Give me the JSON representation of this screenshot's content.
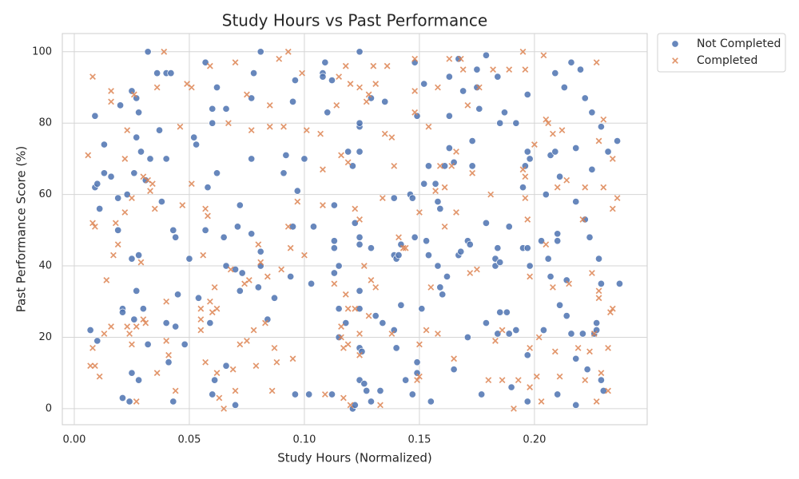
{
  "chart_data": {
    "type": "scatter",
    "title": "Study Hours vs Past Performance",
    "x_label": "Study Hours (Normalized)",
    "y_label": "Past Performance Score (%)",
    "xlim": [
      -0.0052,
      0.249
    ],
    "ylim": [
      -4.5,
      105.1
    ],
    "xticks": [
      {
        "value": 0,
        "label": "0.00"
      },
      {
        "value": 0.05,
        "label": "0.05"
      },
      {
        "value": 0.1,
        "label": "0.10"
      },
      {
        "value": 0.15,
        "label": "0.15"
      },
      {
        "value": 0.2,
        "label": "0.20"
      }
    ],
    "yticks": [
      0,
      20,
      40,
      60,
      80,
      100
    ],
    "grid": true,
    "legend": "outside-right",
    "series": [
      {
        "name": "Not Completed",
        "color": "#4c72b0",
        "marker": "o",
        "x": [
          0.007,
          0.009,
          0.009,
          0.01,
          0.01,
          0.011,
          0.013,
          0.013,
          0.016,
          0.019,
          0.02,
          0.019,
          0.021,
          0.021,
          0.021,
          0.023,
          0.024,
          0.025,
          0.025,
          0.025,
          0.026,
          0.026,
          0.027,
          0.027,
          0.027,
          0.028,
          0.028,
          0.028,
          0.029,
          0.03,
          0.032,
          0.031,
          0.032,
          0.033,
          0.036,
          0.037,
          0.038,
          0.04,
          0.04,
          0.04,
          0.042,
          0.041,
          0.043,
          0.043,
          0.044,
          0.045,
          0.044,
          0.048,
          0.05,
          0.052,
          0.053,
          0.054,
          0.057,
          0.057,
          0.058,
          0.059,
          0.06,
          0.06,
          0.06,
          0.061,
          0.062,
          0.062,
          0.065,
          0.066,
          0.066,
          0.066,
          0.07,
          0.07,
          0.071,
          0.072,
          0.073,
          0.072,
          0.077,
          0.077,
          0.077,
          0.078,
          0.08,
          0.081,
          0.081,
          0.081,
          0.084,
          0.087,
          0.091,
          0.092,
          0.094,
          0.095,
          0.096,
          0.096,
          0.095,
          0.097,
          0.1,
          0.103,
          0.104,
          0.102,
          0.108,
          0.108,
          0.109,
          0.11,
          0.112,
          0.112,
          0.113,
          0.113,
          0.113,
          0.113,
          0.115,
          0.115,
          0.115,
          0.118,
          0.119,
          0.121,
          0.121,
          0.122,
          0.122,
          0.124,
          0.124,
          0.124,
          0.124,
          0.124,
          0.124,
          0.124,
          0.124,
          0.124,
          0.124,
          0.125,
          0.126,
          0.127,
          0.129,
          0.129,
          0.129,
          0.131,
          0.133,
          0.135,
          0.134,
          0.139,
          0.139,
          0.139,
          0.14,
          0.14,
          0.142,
          0.141,
          0.142,
          0.144,
          0.146,
          0.147,
          0.147,
          0.148,
          0.148,
          0.149,
          0.149,
          0.149,
          0.151,
          0.152,
          0.152,
          0.153,
          0.154,
          0.154,
          0.155,
          0.157,
          0.158,
          0.158,
          0.159,
          0.159,
          0.16,
          0.161,
          0.162,
          0.163,
          0.163,
          0.163,
          0.165,
          0.165,
          0.167,
          0.167,
          0.168,
          0.169,
          0.171,
          0.171,
          0.172,
          0.173,
          0.173,
          0.175,
          0.175,
          0.176,
          0.177,
          0.179,
          0.179,
          0.179,
          0.183,
          0.183,
          0.184,
          0.184,
          0.184,
          0.185,
          0.185,
          0.185,
          0.187,
          0.188,
          0.189,
          0.189,
          0.19,
          0.192,
          0.192,
          0.195,
          0.195,
          0.196,
          0.197,
          0.197,
          0.197,
          0.197,
          0.197,
          0.198,
          0.198,
          0.204,
          0.203,
          0.205,
          0.206,
          0.207,
          0.207,
          0.209,
          0.209,
          0.21,
          0.21,
          0.21,
          0.211,
          0.211,
          0.213,
          0.214,
          0.214,
          0.216,
          0.216,
          0.218,
          0.218,
          0.218,
          0.218,
          0.22,
          0.221,
          0.222,
          0.222,
          0.223,
          0.224,
          0.225,
          0.225,
          0.226,
          0.227,
          0.227,
          0.228,
          0.229,
          0.229,
          0.229,
          0.23,
          0.232,
          0.236,
          0.237
        ],
        "values": [
          22,
          82,
          62,
          63,
          19,
          56,
          74,
          66,
          65,
          59,
          85,
          50,
          28,
          27,
          3,
          60,
          2,
          89,
          42,
          10,
          25,
          66,
          76,
          33,
          87,
          83,
          43,
          8,
          72,
          28,
          100,
          64,
          18,
          70,
          94,
          78,
          58,
          94,
          70,
          24,
          94,
          13,
          50,
          2,
          48,
          32,
          23,
          18,
          42,
          76,
          74,
          31,
          97,
          50,
          62,
          24,
          84,
          80,
          4,
          8,
          90,
          66,
          48,
          84,
          40,
          12,
          1,
          39,
          51,
          57,
          38,
          33,
          87,
          70,
          49,
          94,
          34,
          100,
          44,
          40,
          25,
          31,
          66,
          71,
          37,
          86,
          92,
          4,
          51,
          61,
          70,
          35,
          51,
          4,
          94,
          93,
          97,
          83,
          92,
          4,
          45,
          38,
          57,
          47,
          20,
          28,
          40,
          24,
          72,
          0,
          68,
          1,
          52,
          48,
          46,
          33,
          17,
          79,
          72,
          80,
          100,
          28,
          8,
          16,
          7,
          5,
          45,
          87,
          2,
          26,
          5,
          86,
          24,
          59,
          22,
          43,
          42,
          17,
          46,
          43,
          29,
          8,
          60,
          59,
          4,
          48,
          97,
          82,
          13,
          10,
          28,
          63,
          91,
          47,
          68,
          43,
          2,
          63,
          58,
          40,
          34,
          56,
          32,
          68,
          37,
          73,
          82,
          93,
          69,
          11,
          98,
          43,
          44,
          89,
          47,
          20,
          46,
          75,
          68,
          90,
          95,
          84,
          4,
          24,
          99,
          52,
          42,
          40,
          21,
          45,
          93,
          80,
          41,
          27,
          83,
          27,
          51,
          21,
          6,
          80,
          22,
          45,
          62,
          68,
          72,
          88,
          45,
          15,
          2,
          70,
          40,
          22,
          47,
          60,
          42,
          71,
          37,
          72,
          94,
          49,
          47,
          4,
          65,
          29,
          90,
          26,
          36,
          97,
          21,
          73,
          14,
          58,
          1,
          95,
          21,
          87,
          53,
          11,
          48,
          67,
          83,
          21,
          24,
          22,
          42,
          79,
          35,
          8,
          5,
          72,
          75,
          35
        ]
      },
      {
        "name": "Completed",
        "color": "#dd8452",
        "marker": "x",
        "x": [
          0.006,
          0.008,
          0.007,
          0.008,
          0.008,
          0.009,
          0.009,
          0.011,
          0.013,
          0.014,
          0.016,
          0.016,
          0.016,
          0.017,
          0.019,
          0.018,
          0.022,
          0.022,
          0.023,
          0.023,
          0.024,
          0.025,
          0.025,
          0.026,
          0.027,
          0.027,
          0.029,
          0.03,
          0.03,
          0.031,
          0.032,
          0.033,
          0.034,
          0.035,
          0.036,
          0.036,
          0.039,
          0.04,
          0.04,
          0.041,
          0.044,
          0.046,
          0.047,
          0.049,
          0.051,
          0.051,
          0.055,
          0.055,
          0.055,
          0.056,
          0.057,
          0.057,
          0.058,
          0.059,
          0.059,
          0.06,
          0.061,
          0.062,
          0.062,
          0.063,
          0.065,
          0.067,
          0.068,
          0.069,
          0.07,
          0.07,
          0.072,
          0.074,
          0.075,
          0.075,
          0.076,
          0.077,
          0.078,
          0.079,
          0.08,
          0.081,
          0.083,
          0.084,
          0.085,
          0.085,
          0.086,
          0.087,
          0.088,
          0.089,
          0.09,
          0.091,
          0.093,
          0.093,
          0.094,
          0.095,
          0.097,
          0.099,
          0.1,
          0.101,
          0.107,
          0.108,
          0.108,
          0.109,
          0.113,
          0.114,
          0.115,
          0.116,
          0.116,
          0.117,
          0.116,
          0.117,
          0.118,
          0.119,
          0.118,
          0.119,
          0.119,
          0.12,
          0.12,
          0.122,
          0.122,
          0.124,
          0.124,
          0.124,
          0.124,
          0.126,
          0.127,
          0.128,
          0.128,
          0.129,
          0.13,
          0.131,
          0.131,
          0.133,
          0.134,
          0.135,
          0.136,
          0.138,
          0.138,
          0.139,
          0.141,
          0.143,
          0.144,
          0.148,
          0.148,
          0.148,
          0.149,
          0.15,
          0.15,
          0.15,
          0.153,
          0.154,
          0.155,
          0.157,
          0.158,
          0.158,
          0.159,
          0.161,
          0.161,
          0.163,
          0.164,
          0.165,
          0.166,
          0.166,
          0.168,
          0.169,
          0.171,
          0.172,
          0.173,
          0.175,
          0.176,
          0.18,
          0.181,
          0.182,
          0.183,
          0.186,
          0.186,
          0.189,
          0.191,
          0.193,
          0.195,
          0.195,
          0.196,
          0.196,
          0.196,
          0.197,
          0.198,
          0.198,
          0.198,
          0.2,
          0.201,
          0.202,
          0.203,
          0.204,
          0.205,
          0.205,
          0.206,
          0.208,
          0.208,
          0.209,
          0.21,
          0.211,
          0.212,
          0.214,
          0.215,
          0.219,
          0.221,
          0.222,
          0.222,
          0.224,
          0.225,
          0.226,
          0.227,
          0.227,
          0.228,
          0.228,
          0.228,
          0.229,
          0.23,
          0.23,
          0.232,
          0.232,
          0.233,
          0.234,
          0.234,
          0.234,
          0.236
        ],
        "values": [
          71,
          93,
          12,
          17,
          52,
          51,
          12,
          9,
          21,
          36,
          86,
          89,
          23,
          43,
          46,
          52,
          70,
          55,
          78,
          23,
          21,
          59,
          18,
          88,
          2,
          23,
          41,
          25,
          65,
          24,
          64,
          61,
          63,
          56,
          90,
          10,
          100,
          30,
          19,
          15,
          5,
          79,
          57,
          91,
          90,
          63,
          28,
          25,
          22,
          43,
          13,
          56,
          54,
          96,
          30,
          27,
          34,
          10,
          28,
          3,
          0,
          80,
          39,
          11,
          97,
          5,
          18,
          35,
          88,
          19,
          36,
          78,
          22,
          12,
          46,
          41,
          24,
          37,
          85,
          79,
          5,
          17,
          13,
          98,
          39,
          79,
          51,
          100,
          45,
          14,
          58,
          94,
          43,
          78,
          77,
          67,
          57,
          4,
          35,
          85,
          93,
          71,
          20,
          17,
          23,
          3,
          96,
          69,
          32,
          18,
          28,
          1,
          91,
          28,
          56,
          90,
          53,
          21,
          15,
          40,
          86,
          26,
          88,
          36,
          96,
          91,
          34,
          1,
          59,
          77,
          96,
          76,
          21,
          68,
          48,
          45,
          45,
          98,
          83,
          89,
          8,
          55,
          18,
          9,
          22,
          79,
          34,
          61,
          90,
          21,
          68,
          62,
          51,
          98,
          68,
          14,
          55,
          72,
          98,
          95,
          85,
          38,
          66,
          39,
          90,
          8,
          60,
          95,
          19,
          22,
          8,
          95,
          0,
          8,
          67,
          100,
          65,
          59,
          95,
          53,
          6,
          17,
          37,
          74,
          9,
          20,
          2,
          99,
          46,
          81,
          80,
          77,
          34,
          16,
          62,
          9,
          78,
          64,
          35,
          17,
          53,
          62,
          8,
          16,
          38,
          21,
          2,
          97,
          75,
          31,
          33,
          10,
          81,
          62,
          5,
          17,
          27,
          28,
          56,
          70,
          59
        ]
      }
    ]
  }
}
